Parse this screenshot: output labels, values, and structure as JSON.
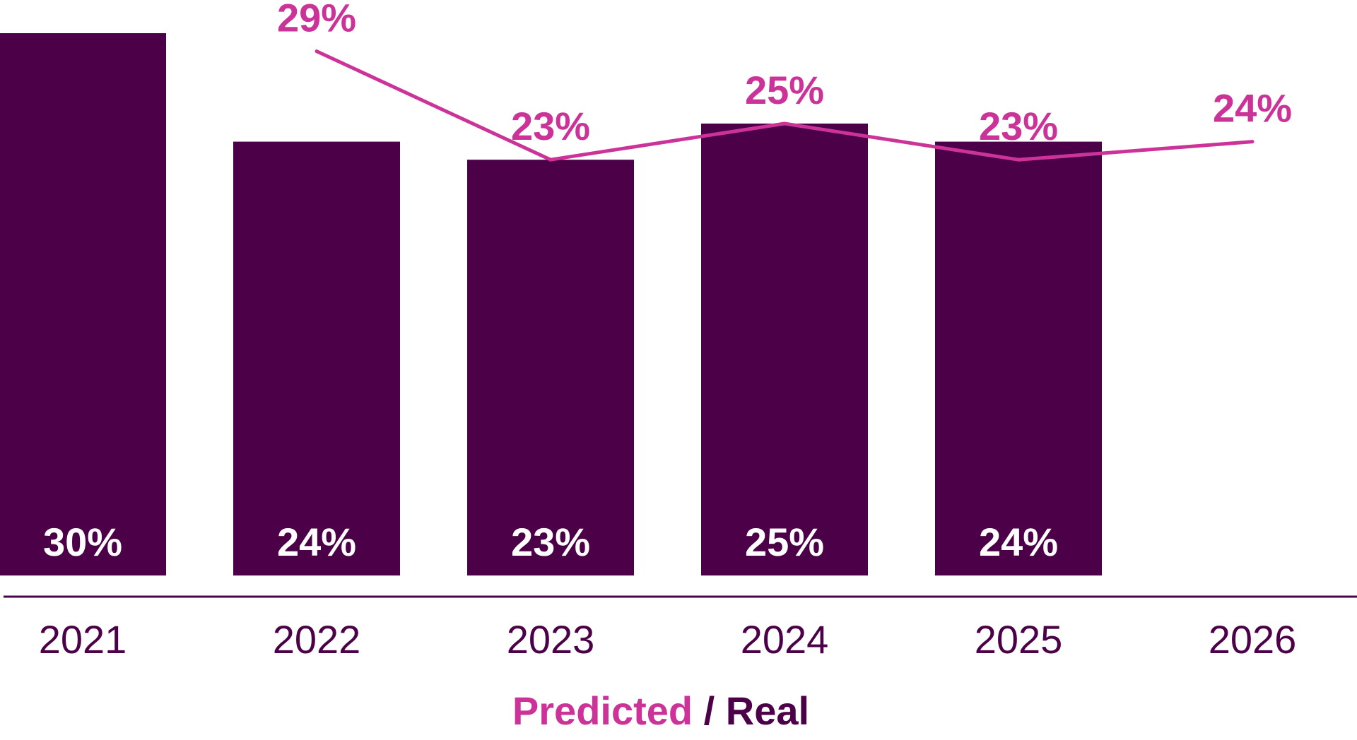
{
  "chart_data": {
    "type": "bar",
    "categories": [
      "2021",
      "2022",
      "2023",
      "2024",
      "2025",
      "2026"
    ],
    "series": [
      {
        "name": "Real",
        "type": "bar",
        "values": [
          30,
          24,
          23,
          25,
          24,
          null
        ],
        "labels": [
          "30%",
          "24%",
          "23%",
          "25%",
          "24%",
          null
        ],
        "color": "#4b0048"
      },
      {
        "name": "Predicted",
        "type": "line",
        "values": [
          null,
          29,
          23,
          25,
          23,
          24
        ],
        "labels": [
          null,
          "29%",
          "23%",
          "25%",
          "23%",
          "24%"
        ],
        "color": "#cc3399"
      }
    ],
    "legend": {
      "predicted": "Predicted",
      "separator": " / ",
      "real": "Real"
    },
    "axis_color": "#4b0048",
    "grid": false,
    "legend_placement": "bottom-center"
  }
}
